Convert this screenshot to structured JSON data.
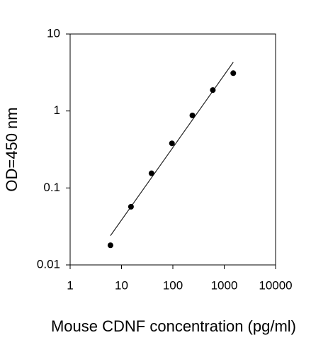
{
  "chart_data": {
    "type": "scatter",
    "xlabel": "Mouse CDNF concentration (pg/ml)",
    "ylabel": "OD=450 nm",
    "xscale": "log",
    "yscale": "log",
    "x": [
      6.1,
      15.3,
      38.4,
      96,
      240,
      600,
      1500
    ],
    "values": [
      0.018,
      0.057,
      0.155,
      0.38,
      0.875,
      1.87,
      3.1
    ],
    "color": "#000000",
    "fit": {
      "x": [
        6.1,
        1500
      ],
      "values": [
        0.024,
        4.3
      ],
      "color": "#000000"
    },
    "xlim": [
      1,
      10000
    ],
    "ylim": [
      0.01,
      10
    ],
    "xticks": [
      1,
      10,
      100,
      1000,
      10000
    ],
    "yticks": [
      0.01,
      0.1,
      1,
      10
    ]
  }
}
